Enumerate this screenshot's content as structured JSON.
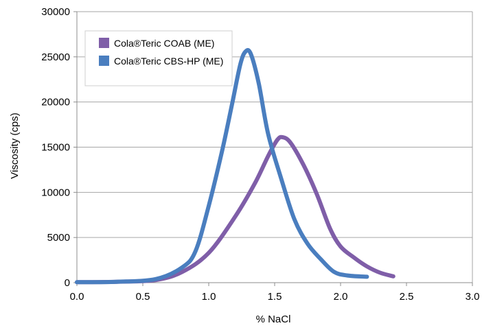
{
  "chart_data": {
    "type": "line",
    "title": "",
    "xlabel": "% NaCl",
    "ylabel": "Viscosity (cps)",
    "xlim": [
      0,
      3
    ],
    "ylim": [
      0,
      30000
    ],
    "x_ticks": [
      "0.0",
      "0.5",
      "1.0",
      "1.5",
      "2.0",
      "2.5",
      "3.0"
    ],
    "y_ticks": [
      "0",
      "5000",
      "10000",
      "15000",
      "20000",
      "25000",
      "30000"
    ],
    "grid": "horizontal",
    "legend_position": "top-left",
    "series": [
      {
        "name": "Cola®Teric COAB (ME)",
        "color": "#7f5ea8",
        "points": [
          [
            0.0,
            50
          ],
          [
            0.3,
            100
          ],
          [
            0.6,
            300
          ],
          [
            0.8,
            1200
          ],
          [
            1.0,
            3300
          ],
          [
            1.2,
            7300
          ],
          [
            1.35,
            11000
          ],
          [
            1.45,
            14000
          ],
          [
            1.52,
            15800
          ],
          [
            1.56,
            16100
          ],
          [
            1.62,
            15500
          ],
          [
            1.72,
            13000
          ],
          [
            1.82,
            9800
          ],
          [
            1.92,
            6000
          ],
          [
            2.0,
            4000
          ],
          [
            2.1,
            2800
          ],
          [
            2.2,
            1800
          ],
          [
            2.3,
            1100
          ],
          [
            2.4,
            700
          ]
        ]
      },
      {
        "name": "Cola®Teric CBS-HP (ME)",
        "color": "#4a7ebf",
        "points": [
          [
            0.0,
            50
          ],
          [
            0.3,
            100
          ],
          [
            0.6,
            400
          ],
          [
            0.8,
            1700
          ],
          [
            0.9,
            3500
          ],
          [
            1.0,
            8500
          ],
          [
            1.1,
            14500
          ],
          [
            1.18,
            20000
          ],
          [
            1.24,
            24200
          ],
          [
            1.28,
            25600
          ],
          [
            1.32,
            25300
          ],
          [
            1.38,
            22000
          ],
          [
            1.45,
            16500
          ],
          [
            1.55,
            11500
          ],
          [
            1.65,
            7000
          ],
          [
            1.75,
            4300
          ],
          [
            1.85,
            2600
          ],
          [
            1.95,
            1200
          ],
          [
            2.05,
            800
          ],
          [
            2.2,
            650
          ]
        ]
      }
    ]
  }
}
